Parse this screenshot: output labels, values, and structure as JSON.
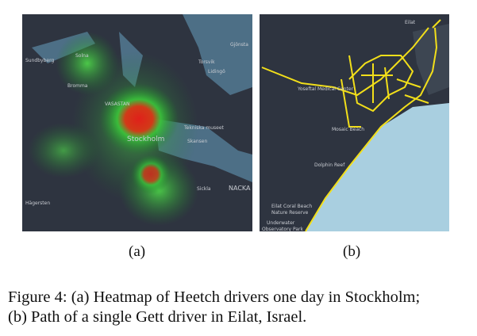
{
  "figure": {
    "panels": [
      {
        "label": "(a)",
        "map_labels": [
          "Sundbyberg",
          "Solna",
          "Bromma",
          "Torsvik",
          "Lidingö",
          "Gjönsta",
          "VASASTAN",
          "Stockholm",
          "Tekniska museet",
          "Skansen",
          "NACKA",
          "Sickla",
          "Hägersten"
        ]
      },
      {
        "label": "(b)",
        "map_labels": [
          "Eilat",
          "Yoseftal Medical Center",
          "Mosaic Beach",
          "Dolphin Reef",
          "Eilat Coral Beach",
          "Nature Reserve",
          "Underwater",
          "Observatory Park"
        ]
      }
    ],
    "caption": [
      "Figure 4: (a) Heatmap of Heetch drivers one day in Stockholm;",
      "(b) Path of a single Gett driver in Eilat, Israel."
    ]
  }
}
